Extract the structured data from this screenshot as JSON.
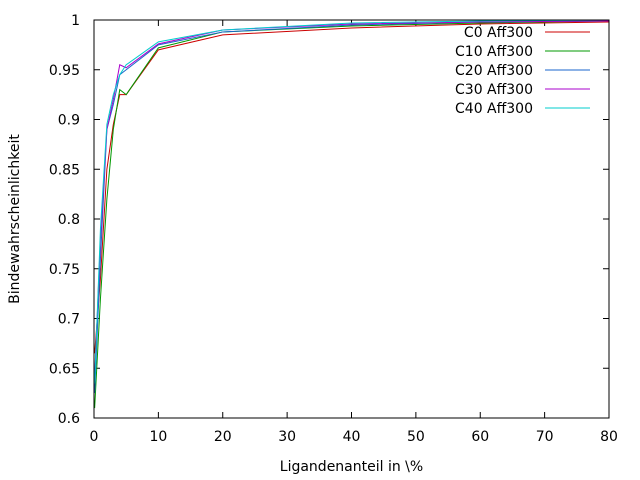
{
  "chart_data": {
    "type": "line",
    "title": "",
    "xlabel": "Ligandenanteil in \\%",
    "ylabel": "Bindewahrscheinlichkeit",
    "xlim": [
      0,
      80
    ],
    "ylim": [
      0.6,
      1.0
    ],
    "xticks": [
      0,
      10,
      20,
      30,
      40,
      50,
      60,
      70,
      80
    ],
    "xtick_labels": [
      "0",
      "10",
      "20",
      "30",
      "40",
      "50",
      "60",
      "70",
      "80"
    ],
    "yticks": [
      0.6,
      0.65,
      0.7,
      0.75,
      0.8,
      0.85,
      0.9,
      0.95,
      1.0
    ],
    "ytick_labels": [
      "0.6",
      "0.65",
      "0.7",
      "0.75",
      "0.8",
      "0.85",
      "0.9",
      "0.95",
      "1"
    ],
    "grid": false,
    "legend_position": "top-right",
    "series": [
      {
        "name": "C0 Aff300",
        "color": "#cc0000",
        "points": [
          [
            0.1,
            0.665
          ],
          [
            1,
            0.74
          ],
          [
            2,
            0.85
          ],
          [
            3,
            0.895
          ],
          [
            4,
            0.925
          ],
          [
            5,
            0.925
          ],
          [
            10,
            0.97
          ],
          [
            20,
            0.985
          ],
          [
            40,
            0.992
          ],
          [
            60,
            0.996
          ],
          [
            80,
            0.998
          ]
        ]
      },
      {
        "name": "C10 Aff300",
        "color": "#009900",
        "points": [
          [
            0.1,
            0.61
          ],
          [
            1,
            0.72
          ],
          [
            2,
            0.82
          ],
          [
            3,
            0.89
          ],
          [
            4,
            0.93
          ],
          [
            5,
            0.925
          ],
          [
            10,
            0.972
          ],
          [
            20,
            0.988
          ],
          [
            40,
            0.994
          ],
          [
            60,
            0.997
          ],
          [
            80,
            0.999
          ]
        ]
      },
      {
        "name": "C20 Aff300",
        "color": "#1a66cc",
        "points": [
          [
            0.1,
            0.625
          ],
          [
            1,
            0.76
          ],
          [
            2,
            0.89
          ],
          [
            3,
            0.915
          ],
          [
            4,
            0.945
          ],
          [
            5,
            0.95
          ],
          [
            10,
            0.975
          ],
          [
            20,
            0.988
          ],
          [
            40,
            0.995
          ],
          [
            60,
            0.998
          ],
          [
            80,
            0.999
          ]
        ]
      },
      {
        "name": "C30 Aff300",
        "color": "#aa00cc",
        "points": [
          [
            0.1,
            0.64
          ],
          [
            1,
            0.78
          ],
          [
            2,
            0.89
          ],
          [
            3,
            0.92
          ],
          [
            4,
            0.955
          ],
          [
            5,
            0.952
          ],
          [
            10,
            0.976
          ],
          [
            20,
            0.99
          ],
          [
            40,
            0.996
          ],
          [
            60,
            0.998
          ],
          [
            80,
            0.999
          ]
        ]
      },
      {
        "name": "C40 Aff300",
        "color": "#00cccc",
        "points": [
          [
            0.1,
            0.635
          ],
          [
            1,
            0.79
          ],
          [
            2,
            0.895
          ],
          [
            3,
            0.925
          ],
          [
            4,
            0.945
          ],
          [
            5,
            0.955
          ],
          [
            10,
            0.978
          ],
          [
            20,
            0.99
          ],
          [
            40,
            0.997
          ],
          [
            60,
            0.999
          ],
          [
            80,
            1.0
          ]
        ]
      }
    ]
  }
}
